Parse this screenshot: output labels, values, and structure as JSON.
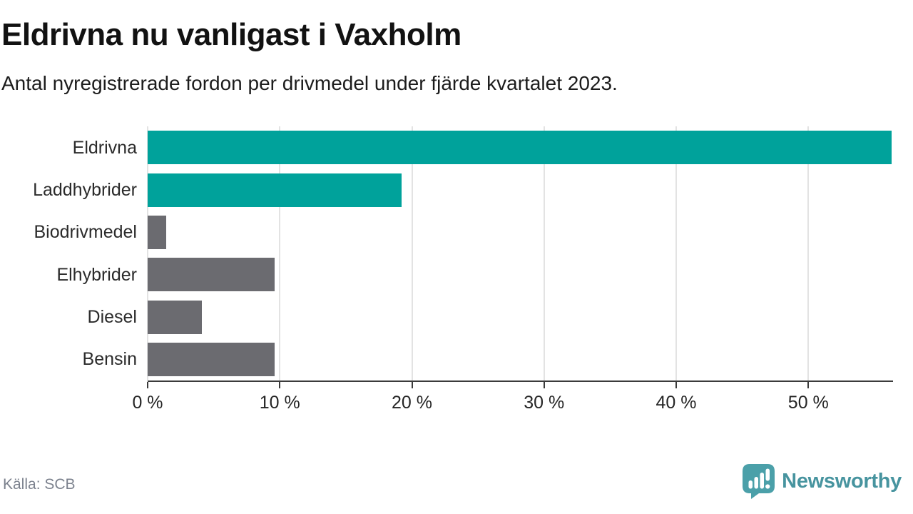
{
  "title": "Eldrivna nu vanligast i Vaxholm",
  "subtitle": "Antal nyregistrerade fordon per drivmedel under fjärde kvartalet 2023.",
  "footer": {
    "source": "Källa: SCB",
    "brand_name": "Newsworthy",
    "brand_icon": "newsworthy-speech-bubble-bar-chart-icon"
  },
  "colors": {
    "highlight_bar": "#00a29b",
    "default_bar": "#6b6b70",
    "gridline": "#e3e3e3",
    "axis": "#3b3b3b",
    "title_text": "#121212",
    "label_text": "#2b2b2b",
    "muted_text": "#7c828e",
    "brand_text_teal": "#47949f",
    "brand_icon_teal": "#4ba0a9"
  },
  "chart_data": {
    "type": "bar",
    "orientation": "horizontal",
    "title": "Eldrivna nu vanligast i Vaxholm",
    "subtitle": "Antal nyregistrerade fordon per drivmedel under fjärde kvartalet 2023.",
    "categories": [
      "Eldrivna",
      "Laddhybrider",
      "Biodrivmedel",
      "Elhybrider",
      "Diesel",
      "Bensin"
    ],
    "values": [
      56.3,
      19.2,
      1.4,
      9.6,
      4.1,
      9.6
    ],
    "unit": "%",
    "bar_colors": [
      "#00a29b",
      "#00a29b",
      "#6b6b70",
      "#6b6b70",
      "#6b6b70",
      "#6b6b70"
    ],
    "xlabel": "",
    "ylabel": "",
    "xlim": [
      0,
      56.3
    ],
    "x_ticks": [
      0,
      10,
      20,
      30,
      40,
      50
    ],
    "x_tick_labels": [
      "0 %",
      "10 %",
      "20 %",
      "30 %",
      "40 %",
      "50 %"
    ],
    "grid": "vertical",
    "legend": "none"
  }
}
